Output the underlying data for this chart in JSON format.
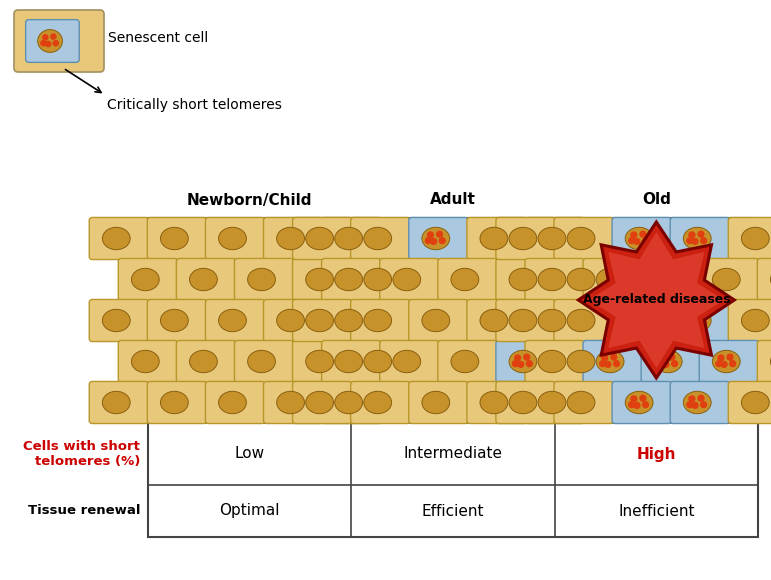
{
  "legend_title1": "Senescent cell",
  "legend_title2": "Critically short telomeres",
  "col_headers": [
    "Newborn/Child",
    "Adult",
    "Old"
  ],
  "row_label1": "Cells with short\ntelomeres (%)",
  "row_label2": "Tissue renewal",
  "col_values1": [
    "Low",
    "Intermediate",
    "High"
  ],
  "col_values2": [
    "Optimal",
    "Efficient",
    "Inefficient"
  ],
  "col3_val1_color": "#cc0000",
  "age_related_text": "Age-related diseases",
  "normal_cell_fill": "#e8c87a",
  "normal_cell_border": "#b8962a",
  "normal_cell_bg": "#f0d898",
  "senescent_cell_fill": "#aac8e0",
  "senescent_cell_border": "#6090b0",
  "nucleus_color": "#c8922a",
  "nucleus_border": "#8a6010",
  "dot_color": "#e04010",
  "cell_bg": "#f0d898",
  "table_border": "#444444",
  "star_outer": "#cc2010",
  "star_inner": "#e85040",
  "star_edge": "#7a0000",
  "legend_box_fill": "#e8c878",
  "legend_box_border": "#a09060"
}
